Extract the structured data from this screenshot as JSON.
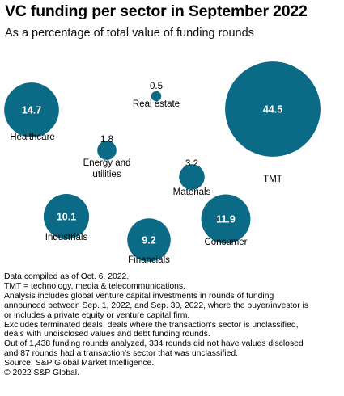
{
  "title": "VC funding per sector in September 2022",
  "subtitle": "As a percentage of total value of funding rounds",
  "chart_data": {
    "type": "bubble",
    "title": "VC funding per sector in September 2022",
    "subtitle": "As a percentage of total value of funding rounds",
    "unit": "%",
    "colors": {
      "bubble": "#0b6a86",
      "inside_label": "#ffffff",
      "outside_label": "#000000"
    },
    "bubbles": [
      {
        "label": "Healthcare",
        "value": 14.7
      },
      {
        "label": "Real estate",
        "value": 0.5
      },
      {
        "label": "TMT",
        "value": 44.5
      },
      {
        "label": "Energy and\nutilities",
        "value": 1.8
      },
      {
        "label": "Materials",
        "value": 3.2
      },
      {
        "label": "Industrials",
        "value": 10.1
      },
      {
        "label": "Consumer",
        "value": 11.9
      },
      {
        "label": "Financials",
        "value": 9.2
      }
    ]
  },
  "footnotes": [
    "Data compiled as of Oct. 6, 2022.",
    "TMT = technology, media & telecommunications.",
    "Analysis includes global venture capital investments in rounds of funding",
    "announced between Sep. 1, 2022, and Sep. 30, 2022, where the buyer/investor is",
    "or includes a private equity or venture capital firm.",
    "Excludes terminated deals, deals where the transaction's sector is unclassified,",
    "deals with undisclosed values and debt funding rounds.",
    "Out of 1,438 funding rounds analyzed, 334 rounds did not have values disclosed",
    "and 87 rounds had a transaction's sector that was unclassified.",
    "Source: S&P Global Market Intelligence.",
    "© 2022 S&P Global."
  ]
}
